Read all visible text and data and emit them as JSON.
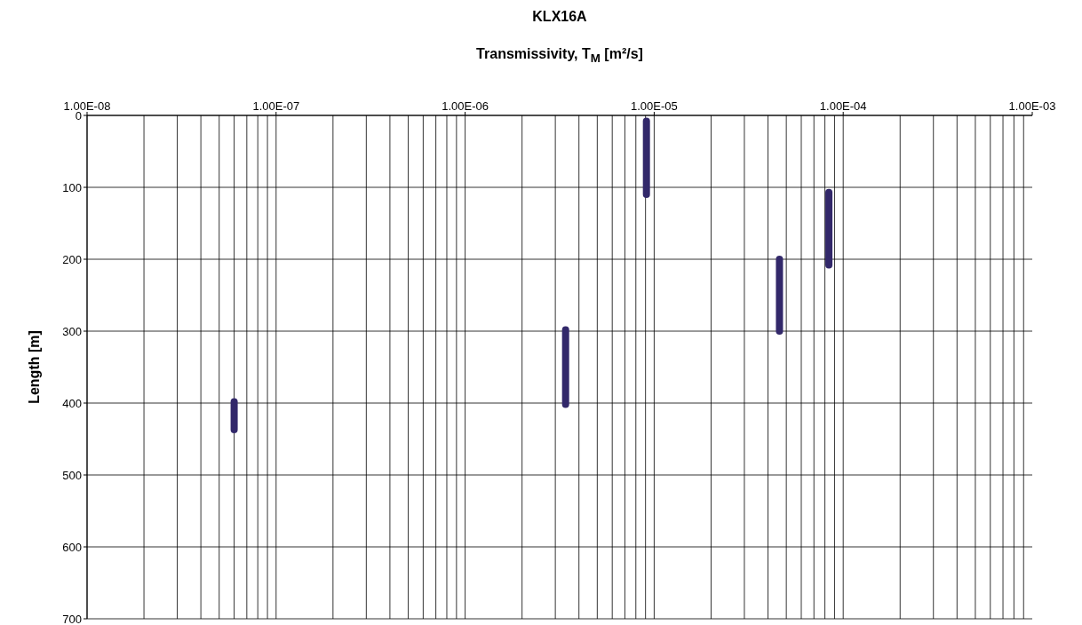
{
  "chart_data": {
    "type": "line",
    "title": "KLX16A",
    "xlabel": "Transmissivity, T$_{M}$ [m²/s]",
    "ylabel": "Length [m]",
    "log": "x",
    "grid": true,
    "marker": "none",
    "xlim": [
      1e-08,
      0.001
    ],
    "xticks": [
      {
        "value": 1e-08,
        "label": "1.00E-08"
      },
      {
        "value": 1e-07,
        "label": "1.00E-07"
      },
      {
        "value": 1e-06,
        "label": "1.00E-06"
      },
      {
        "value": 1e-05,
        "label": "1.00E-05"
      },
      {
        "value": 0.0001,
        "label": "1.00E-04"
      },
      {
        "value": 0.001,
        "label": "1.00E-03"
      }
    ],
    "ylim": [
      700,
      0
    ],
    "yticks": [
      0,
      100,
      200,
      300,
      400,
      500,
      600,
      700
    ],
    "series": [
      {
        "color": "#32286a",
        "x": [
          6e-08,
          6e-08
        ],
        "values": [
          398,
          437
        ]
      },
      {
        "color": "#32286a",
        "x": [
          3.4e-06,
          3.4e-06
        ],
        "values": [
          298,
          402
        ]
      },
      {
        "color": "#32286a",
        "x": [
          9.1e-06,
          9.1e-06
        ],
        "values": [
          8,
          110
        ]
      },
      {
        "color": "#32286a",
        "x": [
          4.6e-05,
          4.6e-05
        ],
        "values": [
          200,
          300
        ]
      },
      {
        "color": "#32286a",
        "x": [
          8.4e-05,
          8.4e-05
        ],
        "values": [
          107,
          208
        ]
      }
    ]
  }
}
